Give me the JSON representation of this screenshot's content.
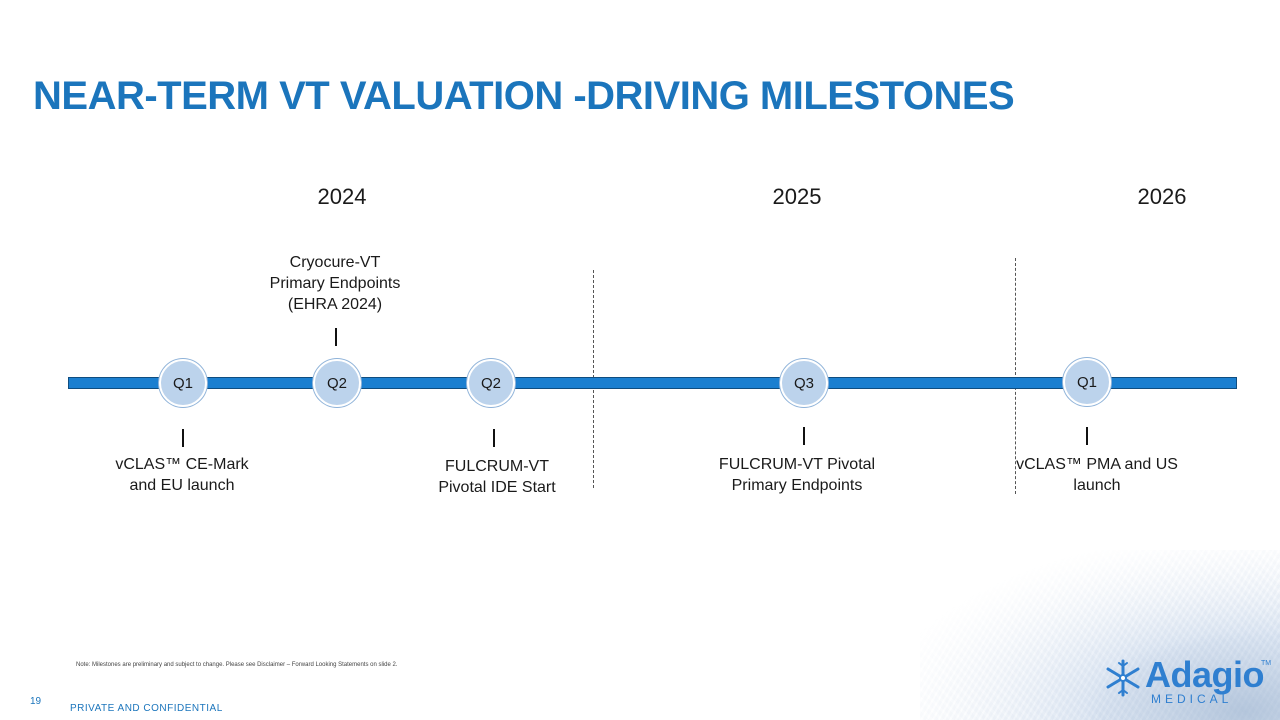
{
  "slide": {
    "title": "NEAR-TERM VT VALUATION -DRIVING MILESTONES",
    "page_number": "19",
    "footer": "PRIVATE AND CONFIDENTIAL",
    "note": "Note: Milestones are preliminary and subject to change. Please see Disclaimer – Forward Looking Statements on slide 2."
  },
  "years": [
    "2024",
    "2025",
    "2026"
  ],
  "quarters": [
    "Q1",
    "Q2",
    "Q2",
    "Q3",
    "Q1"
  ],
  "milestones": {
    "above": "Cryocure-VT\nPrimary Endpoints\n(EHRA 2024)",
    "below": [
      "vCLAS™ CE-Mark\nand EU launch",
      "FULCRUM-VT\n  Pivotal IDE Start",
      "FULCRUM-VT Pivotal\n            Primary Endpoints",
      "vCLAS™ PMA and US\nlaunch"
    ]
  },
  "logo": {
    "name": "Adagio",
    "subtitle": "MEDICAL",
    "tm": "TM"
  },
  "colors": {
    "title": "#1b75bc",
    "bar": "#1b7fd0",
    "quarter_circle": "#bcd3ec"
  }
}
